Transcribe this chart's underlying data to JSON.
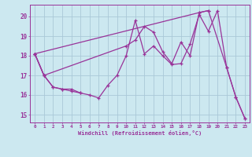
{
  "xlabel": "Windchill (Refroidissement éolien,°C)",
  "bg_color": "#cce8f0",
  "grid_color": "#aac8d8",
  "line_color": "#993399",
  "xlim": [
    -0.5,
    23.5
  ],
  "ylim": [
    14.6,
    20.6
  ],
  "yticks": [
    15,
    16,
    17,
    18,
    19,
    20
  ],
  "xticks": [
    0,
    1,
    2,
    3,
    4,
    5,
    6,
    7,
    8,
    9,
    10,
    11,
    12,
    13,
    14,
    15,
    16,
    17,
    18,
    19,
    20,
    21,
    22,
    23
  ],
  "series": [
    {
      "x": [
        0,
        1,
        2,
        3,
        4,
        5,
        6,
        7,
        8,
        9,
        10,
        11,
        12,
        13,
        14,
        15,
        16,
        17,
        18,
        19,
        20,
        21,
        22,
        23
      ],
      "y": [
        18.1,
        17.0,
        16.4,
        16.3,
        16.3,
        16.1,
        16.0,
        15.85,
        16.5,
        17.0,
        18.0,
        19.8,
        18.1,
        18.5,
        18.0,
        17.55,
        17.6,
        18.6,
        20.1,
        19.25,
        20.3,
        17.4,
        15.9,
        14.8
      ]
    },
    {
      "x": [
        0,
        1,
        2,
        3,
        4,
        5
      ],
      "y": [
        18.1,
        17.0,
        16.4,
        16.3,
        16.2,
        16.1
      ]
    },
    {
      "x": [
        0,
        1,
        10,
        11,
        12,
        13,
        14,
        15,
        16,
        17,
        18,
        19
      ],
      "y": [
        18.1,
        17.0,
        18.5,
        18.8,
        19.5,
        19.2,
        18.2,
        17.6,
        18.7,
        18.0,
        20.2,
        20.3
      ]
    },
    {
      "x": [
        0,
        18,
        19,
        21,
        22,
        23
      ],
      "y": [
        18.1,
        20.2,
        20.3,
        17.4,
        15.9,
        14.8
      ]
    }
  ]
}
